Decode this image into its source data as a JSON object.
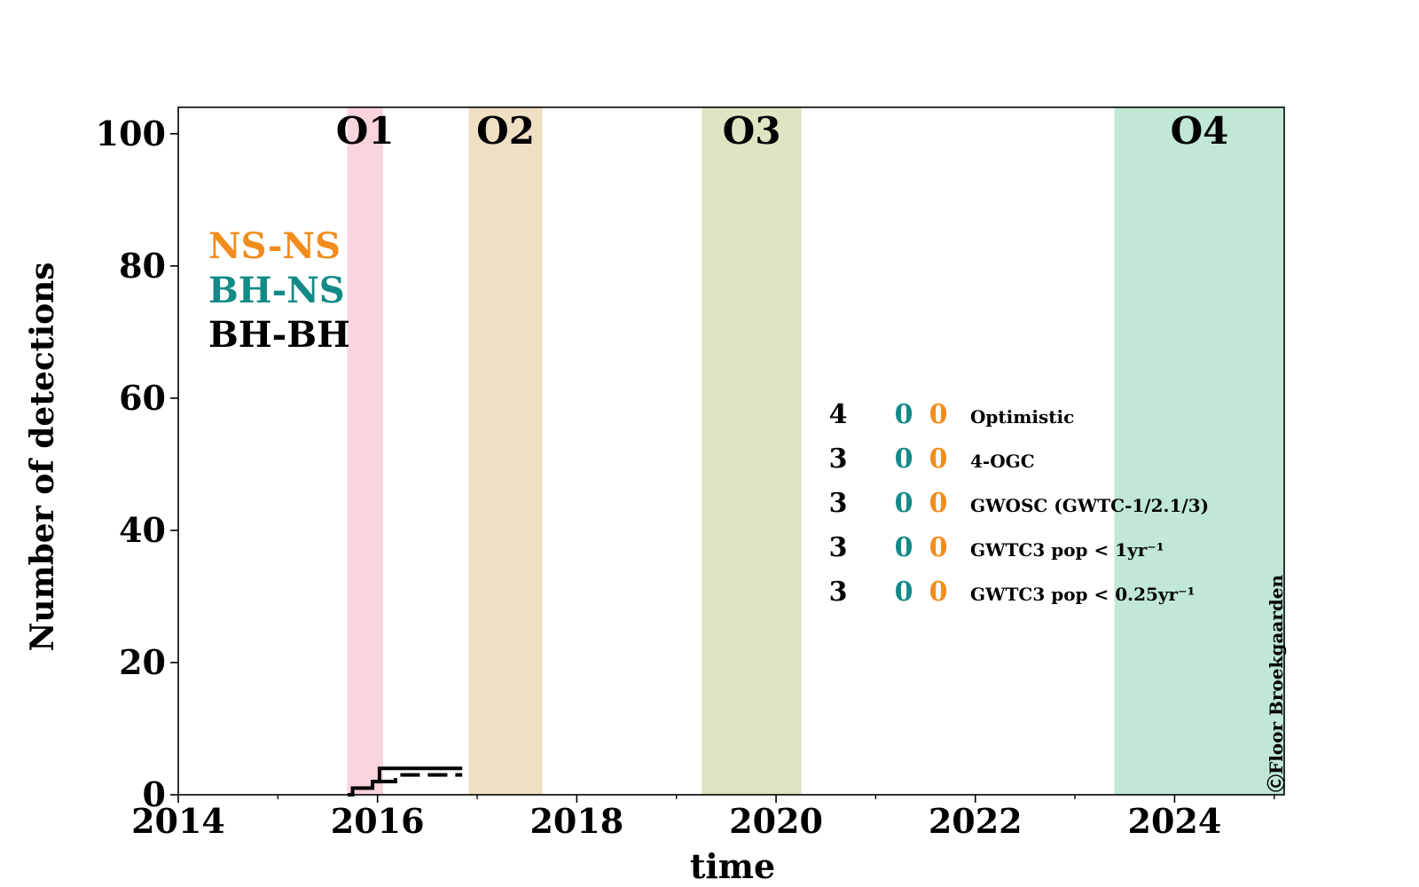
{
  "chart_data": {
    "type": "line",
    "xlabel": "time",
    "ylabel": "Number of detections",
    "xlim": [
      2014,
      2025.1
    ],
    "ylim": [
      0,
      104
    ],
    "x_ticks": [
      2014,
      2016,
      2018,
      2020,
      2022,
      2024
    ],
    "x_minor_ticks": [
      2015,
      2017,
      2019,
      2021,
      2023,
      2025
    ],
    "y_ticks": [
      0,
      20,
      40,
      60,
      80,
      100
    ],
    "grid": false,
    "runs": [
      {
        "label": "O1",
        "start": 2015.7,
        "end": 2016.05,
        "color": "#fad4dd"
      },
      {
        "label": "O2",
        "start": 2016.92,
        "end": 2017.65,
        "color": "#efdfc3"
      },
      {
        "label": "O3",
        "start": 2019.26,
        "end": 2020.25,
        "color": "#dde5c3"
      },
      {
        "label": "O4",
        "start": 2023.4,
        "end": 2025.1,
        "color": "#c0e8d5"
      }
    ],
    "class_legend": [
      {
        "label": "NS-NS",
        "color": "#f28c1c"
      },
      {
        "label": "BH-NS",
        "color": "#138a88"
      },
      {
        "label": "BH-BH",
        "color": "#000000"
      }
    ],
    "series": [
      {
        "name": "Optimistic",
        "style": "solid",
        "x": [
          2015.7,
          2015.75,
          2015.75,
          2015.96,
          2015.96,
          2016.18
        ],
        "y": [
          0,
          0,
          1,
          1,
          2,
          2
        ],
        "_note": "staircase; see steps"
      }
    ],
    "steps_solid": {
      "x": [
        2015.7,
        2015.75,
        2015.75,
        2015.95,
        2015.95,
        2016.02,
        2016.02,
        2016.85
      ],
      "y": [
        0,
        0,
        1,
        1,
        2,
        2,
        4,
        4
      ]
    },
    "steps_dashed": {
      "x": [
        2016.02,
        2016.18,
        2016.18,
        2016.85
      ],
      "y": [
        2,
        2,
        3,
        3
      ]
    },
    "counts_table": [
      {
        "bhbh": "4",
        "bhns": "0",
        "nsns": "0",
        "label": "Optimistic"
      },
      {
        "bhbh": "3",
        "bhns": "0",
        "nsns": "0",
        "label": "4-OGC"
      },
      {
        "bhbh": "3",
        "bhns": "0",
        "nsns": "0",
        "label": "GWOSC (GWTC-1/2.1/3)"
      },
      {
        "bhbh": "3",
        "bhns": "0",
        "nsns": "0",
        "label": "GWTC3 pop < 1yr⁻¹"
      },
      {
        "bhbh": "3",
        "bhns": "0",
        "nsns": "0",
        "label": "GWTC3 pop < 0.25yr⁻¹"
      }
    ],
    "credit": "ⒸFloor Broekgaarden"
  }
}
